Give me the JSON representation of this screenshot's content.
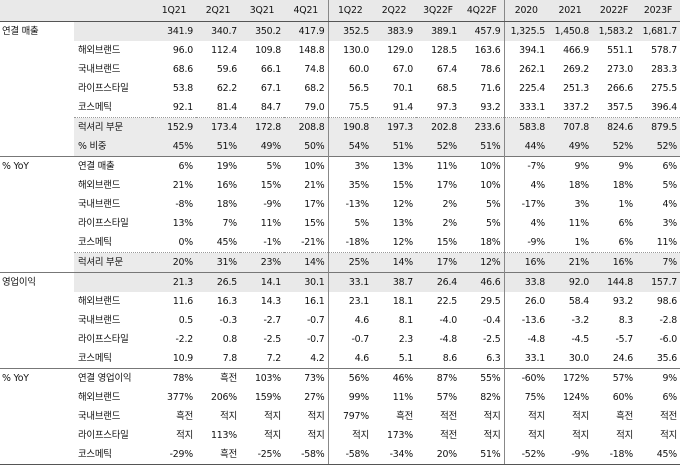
{
  "columns": [
    "1Q21",
    "2Q21",
    "3Q21",
    "4Q21",
    "1Q22",
    "2Q22",
    "3Q22F",
    "4Q22F",
    "2020",
    "2021",
    "2022F",
    "2023F"
  ],
  "sections": [
    {
      "title": "연결 매출",
      "rows": [
        {
          "label": "",
          "values": [
            "341.9",
            "340.7",
            "350.2",
            "417.9",
            "352.5",
            "383.9",
            "389.1",
            "457.9",
            "1,325.5",
            "1,450.8",
            "1,583.2",
            "1,681.7"
          ]
        },
        {
          "label": "해외브랜드",
          "values": [
            "96.0",
            "112.4",
            "109.8",
            "148.8",
            "130.0",
            "129.0",
            "128.5",
            "163.6",
            "394.1",
            "466.9",
            "551.1",
            "578.7"
          ]
        },
        {
          "label": "국내브랜드",
          "values": [
            "68.6",
            "59.6",
            "66.1",
            "74.8",
            "60.0",
            "67.0",
            "67.4",
            "78.6",
            "262.1",
            "269.2",
            "273.0",
            "283.3"
          ]
        },
        {
          "label": "라이프스타일",
          "values": [
            "53.8",
            "62.2",
            "67.1",
            "68.2",
            "56.5",
            "70.1",
            "68.5",
            "71.6",
            "225.4",
            "251.3",
            "266.6",
            "275.5"
          ]
        },
        {
          "label": "코스메틱",
          "values": [
            "92.1",
            "81.4",
            "84.7",
            "79.0",
            "75.5",
            "91.4",
            "97.3",
            "93.2",
            "333.1",
            "337.2",
            "357.5",
            "396.4"
          ]
        },
        {
          "label": "럭셔리 부문",
          "values": [
            "152.9",
            "173.4",
            "172.8",
            "208.8",
            "190.8",
            "197.3",
            "202.8",
            "233.6",
            "583.8",
            "707.8",
            "824.6",
            "879.5"
          ]
        },
        {
          "label": "% 비중",
          "values": [
            "45%",
            "51%",
            "49%",
            "50%",
            "54%",
            "51%",
            "52%",
            "51%",
            "44%",
            "49%",
            "52%",
            "52%"
          ]
        }
      ]
    },
    {
      "title": "% YoY",
      "rows": [
        {
          "label": "연결 매출",
          "values": [
            "6%",
            "19%",
            "5%",
            "10%",
            "3%",
            "13%",
            "11%",
            "10%",
            "-7%",
            "9%",
            "9%",
            "6%"
          ]
        },
        {
          "label": "해외브랜드",
          "values": [
            "21%",
            "16%",
            "15%",
            "21%",
            "35%",
            "15%",
            "17%",
            "10%",
            "4%",
            "18%",
            "18%",
            "5%"
          ]
        },
        {
          "label": "국내브랜드",
          "values": [
            "-8%",
            "18%",
            "-9%",
            "17%",
            "-13%",
            "12%",
            "2%",
            "5%",
            "-17%",
            "3%",
            "1%",
            "4%"
          ]
        },
        {
          "label": "라이프스타일",
          "values": [
            "13%",
            "7%",
            "11%",
            "15%",
            "5%",
            "13%",
            "2%",
            "5%",
            "4%",
            "11%",
            "6%",
            "3%"
          ]
        },
        {
          "label": "코스메틱",
          "values": [
            "0%",
            "45%",
            "-1%",
            "-21%",
            "-18%",
            "12%",
            "15%",
            "18%",
            "-9%",
            "1%",
            "6%",
            "11%"
          ]
        },
        {
          "label": "럭셔리 부문",
          "values": [
            "20%",
            "31%",
            "23%",
            "14%",
            "25%",
            "14%",
            "17%",
            "12%",
            "16%",
            "21%",
            "16%",
            "7%"
          ]
        }
      ]
    },
    {
      "title": "영업이익",
      "rows": [
        {
          "label": "",
          "values": [
            "21.3",
            "26.5",
            "14.1",
            "30.1",
            "33.1",
            "38.7",
            "26.4",
            "46.6",
            "33.8",
            "92.0",
            "144.8",
            "157.7"
          ]
        },
        {
          "label": "해외브랜드",
          "values": [
            "11.6",
            "16.3",
            "14.3",
            "16.1",
            "23.1",
            "18.1",
            "22.5",
            "29.5",
            "26.0",
            "58.4",
            "93.2",
            "98.6"
          ]
        },
        {
          "label": "국내브랜드",
          "values": [
            "0.5",
            "-0.3",
            "-2.7",
            "-0.7",
            "4.6",
            "8.1",
            "-4.0",
            "-0.4",
            "-13.6",
            "-3.2",
            "8.3",
            "-2.8"
          ]
        },
        {
          "label": "라이프스타일",
          "values": [
            "-2.2",
            "0.8",
            "-2.5",
            "-0.7",
            "-0.7",
            "2.3",
            "-4.8",
            "-2.5",
            "-4.8",
            "-4.5",
            "-5.7",
            "-6.0"
          ]
        },
        {
          "label": "코스메틱",
          "values": [
            "10.9",
            "7.8",
            "7.2",
            "4.2",
            "4.6",
            "5.1",
            "8.6",
            "6.3",
            "33.1",
            "30.0",
            "24.6",
            "35.6"
          ]
        }
      ]
    },
    {
      "title": "% YoY",
      "rows": [
        {
          "label": "연결 영업이익",
          "values": [
            "78%",
            "흑전",
            "103%",
            "73%",
            "56%",
            "46%",
            "87%",
            "55%",
            "-60%",
            "172%",
            "57%",
            "9%"
          ]
        },
        {
          "label": "해외브랜드",
          "values": [
            "377%",
            "206%",
            "159%",
            "27%",
            "99%",
            "11%",
            "57%",
            "82%",
            "75%",
            "124%",
            "60%",
            "6%"
          ]
        },
        {
          "label": "국내브랜드",
          "values": [
            "흑전",
            "적지",
            "적지",
            "적지",
            "797%",
            "흑전",
            "적전",
            "적지",
            "적지",
            "적지",
            "흑전",
            "적전"
          ]
        },
        {
          "label": "라이프스타일",
          "values": [
            "적지",
            "113%",
            "적지",
            "적지",
            "적지",
            "173%",
            "적전",
            "적지",
            "적지",
            "적지",
            "적지",
            "적지"
          ]
        },
        {
          "label": "코스메틱",
          "values": [
            "-29%",
            "흑전",
            "-25%",
            "-58%",
            "-58%",
            "-34%",
            "20%",
            "51%",
            "-52%",
            "-9%",
            "-18%",
            "45%"
          ]
        }
      ]
    }
  ]
}
